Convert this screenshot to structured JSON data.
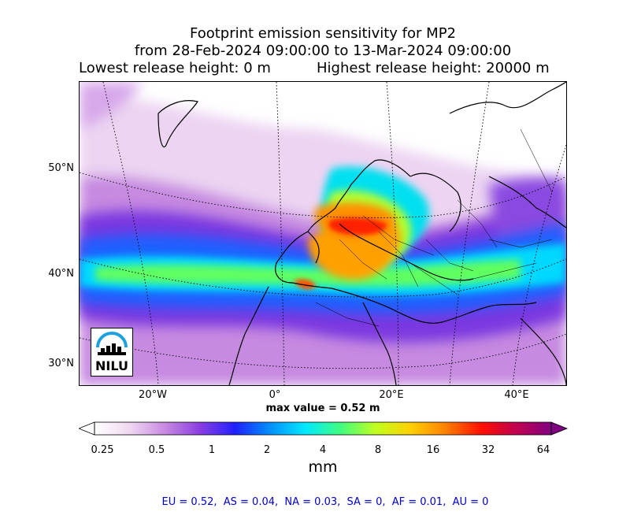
{
  "title": {
    "line1": "Footprint emission sensitivity for MP2",
    "line2": "from 28-Feb-2024 09:00:00 to 13-Mar-2024 09:00:00",
    "lowest": "Lowest release height: 0 m",
    "highest": "Highest release height: 20000 m"
  },
  "axes": {
    "lat_labels": [
      "50°N",
      "40°N",
      "30°N"
    ],
    "lon_labels": [
      "20°W",
      "0°",
      "20°E",
      "40°E"
    ]
  },
  "max_value": "max value = 0.52 m",
  "colorbar": {
    "ticks": [
      "0.25",
      "0.5",
      "1",
      "2",
      "4",
      "8",
      "16",
      "32",
      "64"
    ],
    "unit": "mm",
    "colors": [
      "#ffffff",
      "#f0d8f2",
      "#c88ae0",
      "#8a3ee0",
      "#2020ff",
      "#0090ff",
      "#00e8ff",
      "#40ff80",
      "#c0ff20",
      "#ffd000",
      "#ff8000",
      "#ff1000",
      "#c00050",
      "#800080"
    ]
  },
  "regions": "EU = 0.52,  AS = 0.04,  NA = 0.03,  SA = 0,  AF = 0.01,  AU = 0",
  "logo": {
    "text": "NILU"
  }
}
